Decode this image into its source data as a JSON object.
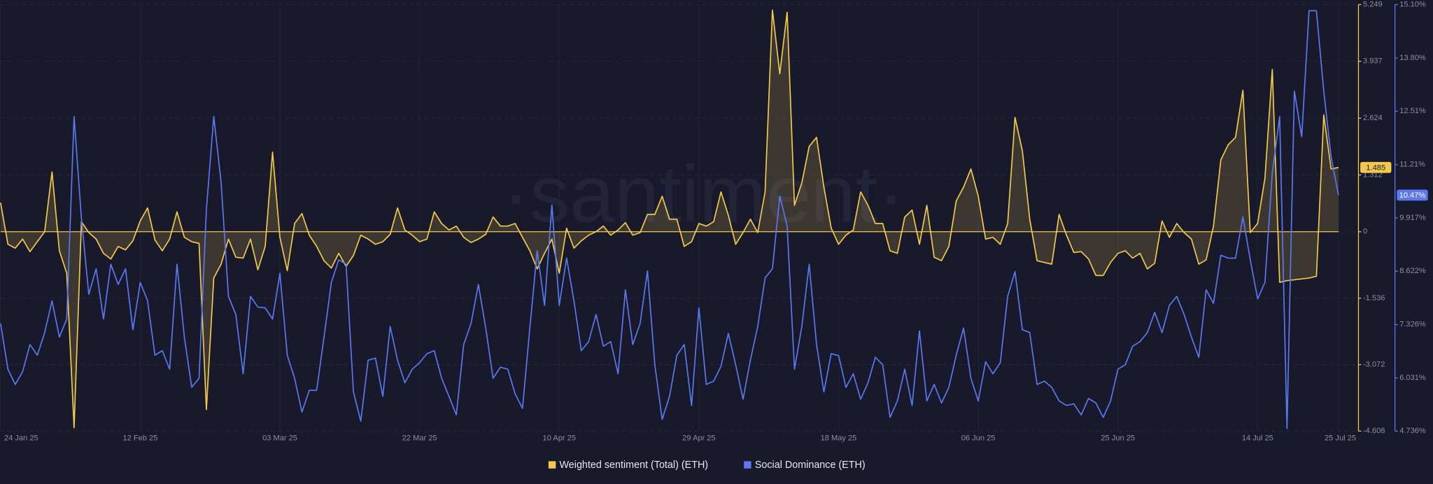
{
  "chart_data": {
    "type": "line",
    "watermark": "·santiment·",
    "categories": [
      "24 Jan 25",
      null,
      null,
      null,
      null,
      null,
      null,
      null,
      null,
      null,
      null,
      null,
      null,
      null,
      null,
      null,
      null,
      null,
      null,
      "12 Feb 25",
      null,
      null,
      null,
      null,
      null,
      null,
      null,
      null,
      null,
      null,
      null,
      null,
      null,
      null,
      null,
      null,
      null,
      null,
      "03 Mar 25",
      null,
      null,
      null,
      null,
      null,
      null,
      null,
      null,
      null,
      null,
      null,
      null,
      null,
      null,
      null,
      null,
      null,
      null,
      "22 Mar 25",
      null,
      null,
      null,
      null,
      null,
      null,
      null,
      null,
      null,
      null,
      null,
      null,
      null,
      null,
      null,
      null,
      null,
      null,
      "10 Apr 25",
      null,
      null,
      null,
      null,
      null,
      null,
      null,
      null,
      null,
      null,
      null,
      null,
      null,
      null,
      null,
      null,
      null,
      null,
      "29 Apr 25",
      null,
      null,
      null,
      null,
      null,
      null,
      null,
      null,
      null,
      null,
      null,
      null,
      null,
      null,
      null,
      null,
      null,
      null,
      "18 May 25",
      null,
      null,
      null,
      null,
      null,
      null,
      null,
      null,
      null,
      null,
      null,
      null,
      null,
      null,
      null,
      null,
      null,
      null,
      "06 Jun 25",
      null,
      null,
      null,
      null,
      null,
      null,
      null,
      null,
      null,
      null,
      null,
      null,
      null,
      null,
      null,
      null,
      null,
      null,
      "25 Jun 25",
      null,
      null,
      null,
      null,
      null,
      null,
      null,
      null,
      null,
      null,
      null,
      null,
      null,
      null,
      null,
      null,
      null,
      null,
      "14 Jul 25",
      null,
      null,
      null,
      null,
      null,
      null,
      null,
      null,
      null,
      null,
      "25 Jul 25"
    ],
    "series": [
      {
        "name": "Weighted sentiment (Total) (ETH)",
        "color": "#f2c94c",
        "axis": "y",
        "fill": true,
        "last_label": "1.485",
        "values": [
          0.67,
          -0.29,
          -0.38,
          -0.17,
          -0.46,
          -0.23,
          0,
          1.38,
          -0.44,
          -0.96,
          -4.53,
          0.23,
          -0.02,
          -0.17,
          -0.5,
          -0.63,
          -0.34,
          -0.42,
          -0.21,
          0.25,
          0.55,
          -0.19,
          -0.44,
          -0.17,
          0.46,
          -0.13,
          -0.23,
          -0.27,
          -4.11,
          -1.07,
          -0.75,
          -0.17,
          -0.59,
          -0.61,
          -0.17,
          -0.88,
          -0.34,
          1.84,
          -0.13,
          -0.9,
          0.19,
          0.42,
          -0.08,
          -0.34,
          -0.67,
          -0.84,
          -0.5,
          -0.8,
          -0.55,
          -0.08,
          -0.17,
          -0.29,
          -0.23,
          -0.06,
          0.55,
          0.04,
          -0.08,
          -0.23,
          -0.17,
          0.46,
          0.19,
          0.04,
          0.13,
          -0.13,
          -0.25,
          -0.17,
          -0.06,
          0.34,
          0.13,
          0.13,
          0.19,
          -0.13,
          -0.44,
          -0.86,
          -0.5,
          -0.17,
          -0.96,
          0.08,
          -0.38,
          -0.21,
          -0.08,
          0,
          0.13,
          -0.08,
          0.04,
          0.21,
          -0.08,
          -0.02,
          0.4,
          0.4,
          0.82,
          0.29,
          0.29,
          -0.34,
          -0.23,
          0.19,
          0.13,
          0.23,
          0.92,
          0.38,
          -0.29,
          -0.02,
          0.29,
          -0.02,
          0.92,
          5.12,
          3.65,
          5.07,
          0.61,
          1.13,
          1.97,
          2.18,
          1.03,
          0.08,
          -0.29,
          -0.08,
          0.04,
          0.92,
          0.61,
          0.19,
          0.19,
          -0.44,
          -0.5,
          0.34,
          0.5,
          -0.29,
          0.61,
          -0.59,
          -0.67,
          -0.34,
          0.71,
          1.03,
          1.45,
          0.82,
          -0.17,
          -0.13,
          -0.29,
          0.19,
          2.64,
          1.87,
          0.29,
          -0.67,
          -0.71,
          -0.75,
          0.4,
          -0.08,
          -0.48,
          -0.46,
          -0.63,
          -1.01,
          -1.01,
          -0.71,
          -0.5,
          -0.44,
          -0.61,
          -0.5,
          -0.86,
          -0.73,
          0.25,
          -0.13,
          0.19,
          -0.02,
          -0.17,
          -0.75,
          -0.65,
          0.13,
          1.66,
          2.01,
          2.18,
          3.27,
          -0.02,
          0.19,
          1.24,
          3.75,
          -1.17,
          -1.13,
          -1.11,
          -1.09,
          -1.07,
          -1.03,
          2.7,
          1.45,
          1.485
        ]
      },
      {
        "name": "Social Dominance (ETH)",
        "color": "#5b78f0",
        "axis": "y2",
        "fill": false,
        "last_label": "10.47%",
        "values": [
          7.35,
          6.24,
          5.87,
          6.18,
          6.84,
          6.58,
          7.13,
          7.9,
          7.02,
          7.46,
          12.38,
          9.9,
          8.06,
          8.68,
          7.46,
          8.79,
          8.3,
          8.68,
          7.2,
          8.35,
          7.9,
          6.58,
          6.69,
          6.24,
          8.79,
          7.02,
          5.8,
          6.02,
          10.12,
          12.38,
          10.78,
          8.01,
          7.57,
          6.13,
          8.01,
          7.75,
          7.73,
          7.46,
          8.57,
          6.58,
          6.02,
          5.2,
          5.73,
          5.73,
          7.02,
          8.35,
          8.9,
          8.79,
          5.69,
          4.98,
          6.46,
          6.51,
          5.58,
          7.28,
          6.46,
          5.91,
          6.24,
          6.4,
          6.62,
          6.69,
          6.02,
          5.58,
          5.13,
          6.84,
          7.35,
          8.3,
          7.24,
          6.02,
          6.29,
          6.24,
          5.64,
          5.29,
          7.24,
          9.12,
          7.79,
          10.23,
          7.79,
          8.94,
          7.9,
          6.69,
          6.91,
          7.57,
          6.8,
          6.91,
          6.13,
          8.17,
          6.84,
          7.35,
          8.63,
          6.35,
          5.02,
          5.58,
          6.58,
          6.84,
          5.36,
          7.73,
          5.87,
          5.95,
          6.31,
          7.11,
          6.35,
          5.51,
          6.46,
          7.28,
          8.46,
          8.68,
          10.45,
          9.72,
          6.24,
          7.28,
          8.79,
          6.84,
          5.69,
          6.62,
          6.57,
          5.8,
          6.13,
          5.51,
          5.91,
          6.53,
          6.35,
          5.07,
          5.47,
          6.24,
          5.36,
          7.17,
          5.47,
          5.87,
          5.42,
          5.8,
          6.58,
          7.24,
          6.02,
          5.47,
          6.42,
          6.13,
          6.4,
          8.01,
          8.61,
          7.2,
          7.13,
          5.87,
          5.95,
          5.8,
          5.47,
          5.36,
          5.4,
          5.13,
          5.53,
          5.42,
          5.07,
          5.47,
          6.24,
          6.35,
          6.8,
          6.91,
          7.13,
          7.62,
          7.13,
          7.79,
          8.01,
          7.57,
          7.02,
          6.53,
          8.17,
          7.84,
          9.01,
          8.94,
          8.94,
          9.94,
          8.9,
          7.95,
          8.35,
          11.01,
          12.38,
          4.8,
          13.0,
          11.89,
          14.95,
          14.95,
          13.0,
          11.4,
          10.47
        ]
      }
    ],
    "ylim": [
      -4.608,
      5.249
    ],
    "yticks": [
      -4.608,
      -3.072,
      -1.536,
      0,
      1.312,
      2.624,
      3.937,
      5.249
    ],
    "y2lim": [
      4.736,
      15.1
    ],
    "y2ticks": [
      {
        "value": 4.736,
        "label": "4.736%"
      },
      {
        "value": 6.031,
        "label": "6.031%"
      },
      {
        "value": 7.326,
        "label": "7.326%"
      },
      {
        "value": 8.622,
        "label": "8.622%"
      },
      {
        "value": 9.917,
        "label": "9.917%"
      },
      {
        "value": 11.21,
        "label": "11.21%"
      },
      {
        "value": 12.51,
        "label": "12.51%"
      },
      {
        "value": 13.8,
        "label": "13.80%"
      },
      {
        "value": 15.1,
        "label": "15.10%"
      }
    ],
    "grid": true
  }
}
